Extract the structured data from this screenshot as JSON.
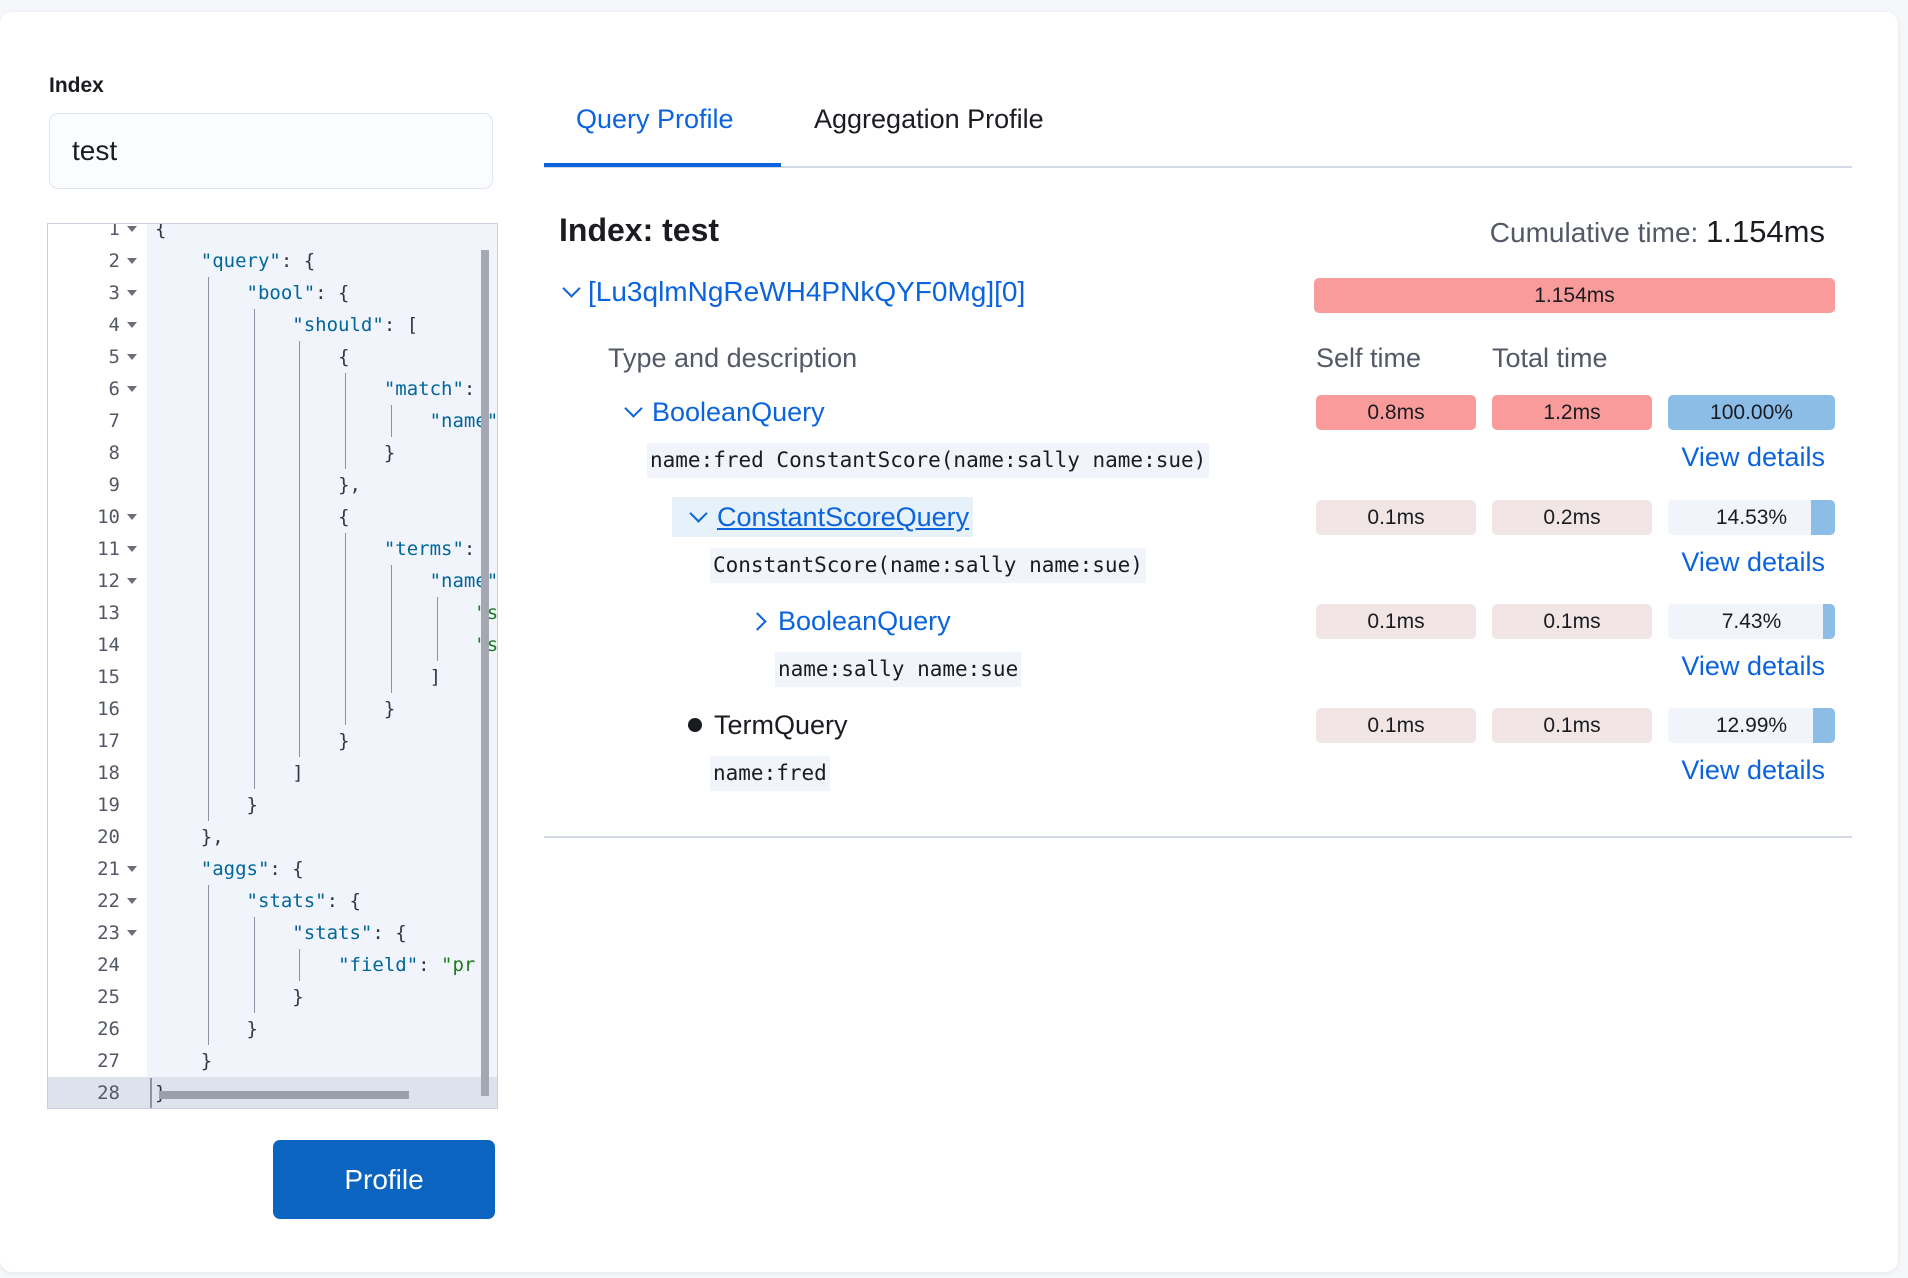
{
  "index_field": {
    "label": "Index",
    "value": "test"
  },
  "editor": {
    "lines": [
      {
        "n": "1",
        "fold": true,
        "text": "{"
      },
      {
        "n": "2",
        "fold": true,
        "text": "    \"query\": {"
      },
      {
        "n": "3",
        "fold": true,
        "text": "        \"bool\": {"
      },
      {
        "n": "4",
        "fold": true,
        "text": "            \"should\": ["
      },
      {
        "n": "5",
        "fold": true,
        "text": "                {"
      },
      {
        "n": "6",
        "fold": true,
        "text": "                    \"match\":"
      },
      {
        "n": "7",
        "fold": false,
        "text": "                        \"name\""
      },
      {
        "n": "8",
        "fold": false,
        "text": "                    }"
      },
      {
        "n": "9",
        "fold": false,
        "text": "                },"
      },
      {
        "n": "10",
        "fold": true,
        "text": "                {"
      },
      {
        "n": "11",
        "fold": true,
        "text": "                    \"terms\":"
      },
      {
        "n": "12",
        "fold": true,
        "text": "                        \"name\""
      },
      {
        "n": "13",
        "fold": false,
        "text": "                            \"s"
      },
      {
        "n": "14",
        "fold": false,
        "text": "                            \"s"
      },
      {
        "n": "15",
        "fold": false,
        "text": "                        ]"
      },
      {
        "n": "16",
        "fold": false,
        "text": "                    }"
      },
      {
        "n": "17",
        "fold": false,
        "text": "                }"
      },
      {
        "n": "18",
        "fold": false,
        "text": "            ]"
      },
      {
        "n": "19",
        "fold": false,
        "text": "        }"
      },
      {
        "n": "20",
        "fold": false,
        "text": "    },"
      },
      {
        "n": "21",
        "fold": true,
        "text": "    \"aggs\": {"
      },
      {
        "n": "22",
        "fold": true,
        "text": "        \"stats\": {"
      },
      {
        "n": "23",
        "fold": true,
        "text": "            \"stats\": {"
      },
      {
        "n": "24",
        "fold": false,
        "text": "                \"field\": \"pr"
      },
      {
        "n": "25",
        "fold": false,
        "text": "            }"
      },
      {
        "n": "26",
        "fold": false,
        "text": "        }"
      },
      {
        "n": "27",
        "fold": false,
        "text": "    }"
      },
      {
        "n": "28",
        "fold": false,
        "text": "}",
        "active": true
      }
    ]
  },
  "profile_button": "Profile",
  "tabs": [
    {
      "label": "Query Profile",
      "active": true
    },
    {
      "label": "Aggregation Profile",
      "active": false
    }
  ],
  "result": {
    "index_title": "Index: test",
    "cumulative_label": "Cumulative time:",
    "cumulative_value": "1.154ms",
    "shard": {
      "label": "[Lu3qlmNgReWH4PNkQYF0Mg][0]",
      "time": "1.154ms"
    },
    "headers": {
      "type": "Type and description",
      "self": "Self time",
      "total": "Total time"
    },
    "rows": [
      {
        "type": "BooleanQuery",
        "expander": "expanded",
        "description": "name:fred ConstantScore(name:sally name:sue)",
        "self": "0.8ms",
        "total": "1.2ms",
        "percent": "100.00%",
        "percent_value": 100,
        "hot": true,
        "link": "View details"
      },
      {
        "type": "ConstantScoreQuery",
        "expander": "expanded",
        "description": "ConstantScore(name:sally name:sue)",
        "self": "0.1ms",
        "total": "0.2ms",
        "percent": "14.53%",
        "percent_value": 14.53,
        "hot": false,
        "link": "View details"
      },
      {
        "type": "BooleanQuery",
        "expander": "collapsed",
        "description": "name:sally name:sue",
        "self": "0.1ms",
        "total": "0.1ms",
        "percent": "7.43%",
        "percent_value": 7.43,
        "hot": false,
        "link": "View details"
      },
      {
        "type": "TermQuery",
        "expander": "leaf",
        "description": "name:fred",
        "self": "0.1ms",
        "total": "0.1ms",
        "percent": "12.99%",
        "percent_value": 12.99,
        "hot": false,
        "link": "View details"
      }
    ]
  },
  "colors": {
    "accent": "#0b64dd",
    "hot": "#f99b9b",
    "cool": "#f1e5e5",
    "percent_fill": "#8bbde6"
  }
}
